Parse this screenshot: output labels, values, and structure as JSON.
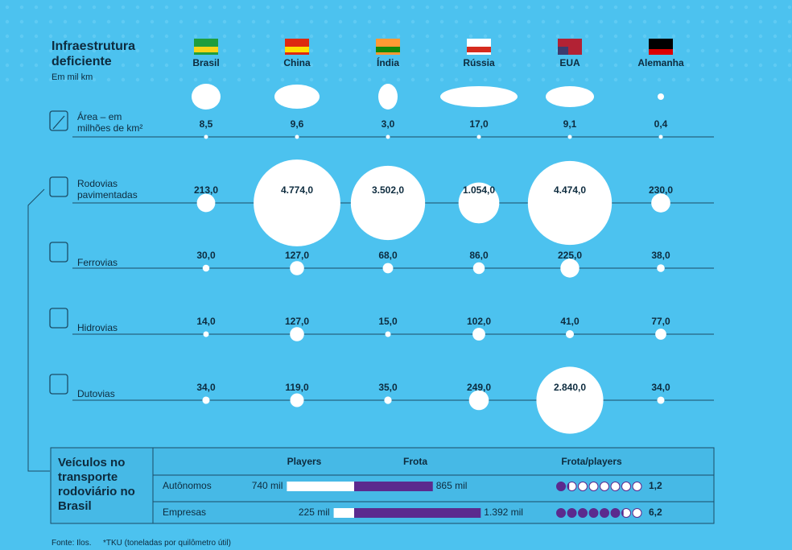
{
  "header": {
    "title": "Infraestrutura deficiente",
    "subtitle": "Em mil km"
  },
  "countries": [
    "Brasil",
    "China",
    "Índia",
    "Rússia",
    "EUA",
    "Alemanha"
  ],
  "rows": [
    {
      "label": "Área – em milhões de km²",
      "values": [
        8.5,
        9.6,
        3.0,
        17.0,
        9.1,
        0.4
      ],
      "value_labels": [
        "8,5",
        "9,6",
        "3,0",
        "17,0",
        "9,1",
        "0,4"
      ]
    },
    {
      "label": "Rodovias pavimentadas",
      "values": [
        213.0,
        4774.0,
        3502.0,
        1054.0,
        4474.0,
        230.0
      ],
      "value_labels": [
        "213,0",
        "4.774,0",
        "3.502,0",
        "1.054,0",
        "4.474,0",
        "230,0"
      ]
    },
    {
      "label": "Ferrovias",
      "values": [
        30.0,
        127.0,
        68.0,
        86.0,
        225.0,
        38.0
      ],
      "value_labels": [
        "30,0",
        "127,0",
        "68,0",
        "86,0",
        "225,0",
        "38,0"
      ]
    },
    {
      "label": "Hidrovias",
      "values": [
        14.0,
        127.0,
        15.0,
        102.0,
        41.0,
        77.0
      ],
      "value_labels": [
        "14,0",
        "127,0",
        "15,0",
        "102,0",
        "41,0",
        "77,0"
      ]
    },
    {
      "label": "Dutovias",
      "values": [
        34.0,
        119.0,
        35.0,
        249.0,
        2840.0,
        34.0
      ],
      "value_labels": [
        "34,0",
        "119,0",
        "35,0",
        "249,0",
        "2.840,0",
        "34,0"
      ]
    }
  ],
  "vehicles": {
    "title": "Veículos no transporte rodoviário no Brasil",
    "columns": [
      "Players",
      "Frota",
      "Frota/players"
    ],
    "rows": [
      {
        "label": "Autônomos",
        "players": 740,
        "players_label": "740 mil",
        "fleet": 865,
        "fleet_label": "865 mil",
        "ratio": 1.2,
        "ratio_label": "1,2"
      },
      {
        "label": "Empresas",
        "players": 225,
        "players_label": "225 mil",
        "fleet": 1392,
        "fleet_label": "1.392 mil",
        "ratio": 6.2,
        "ratio_label": "6,2"
      }
    ]
  },
  "footer": {
    "source": "Fonte: Ilos.",
    "note": "*TKU (toneladas por quilômetro útil)"
  }
}
